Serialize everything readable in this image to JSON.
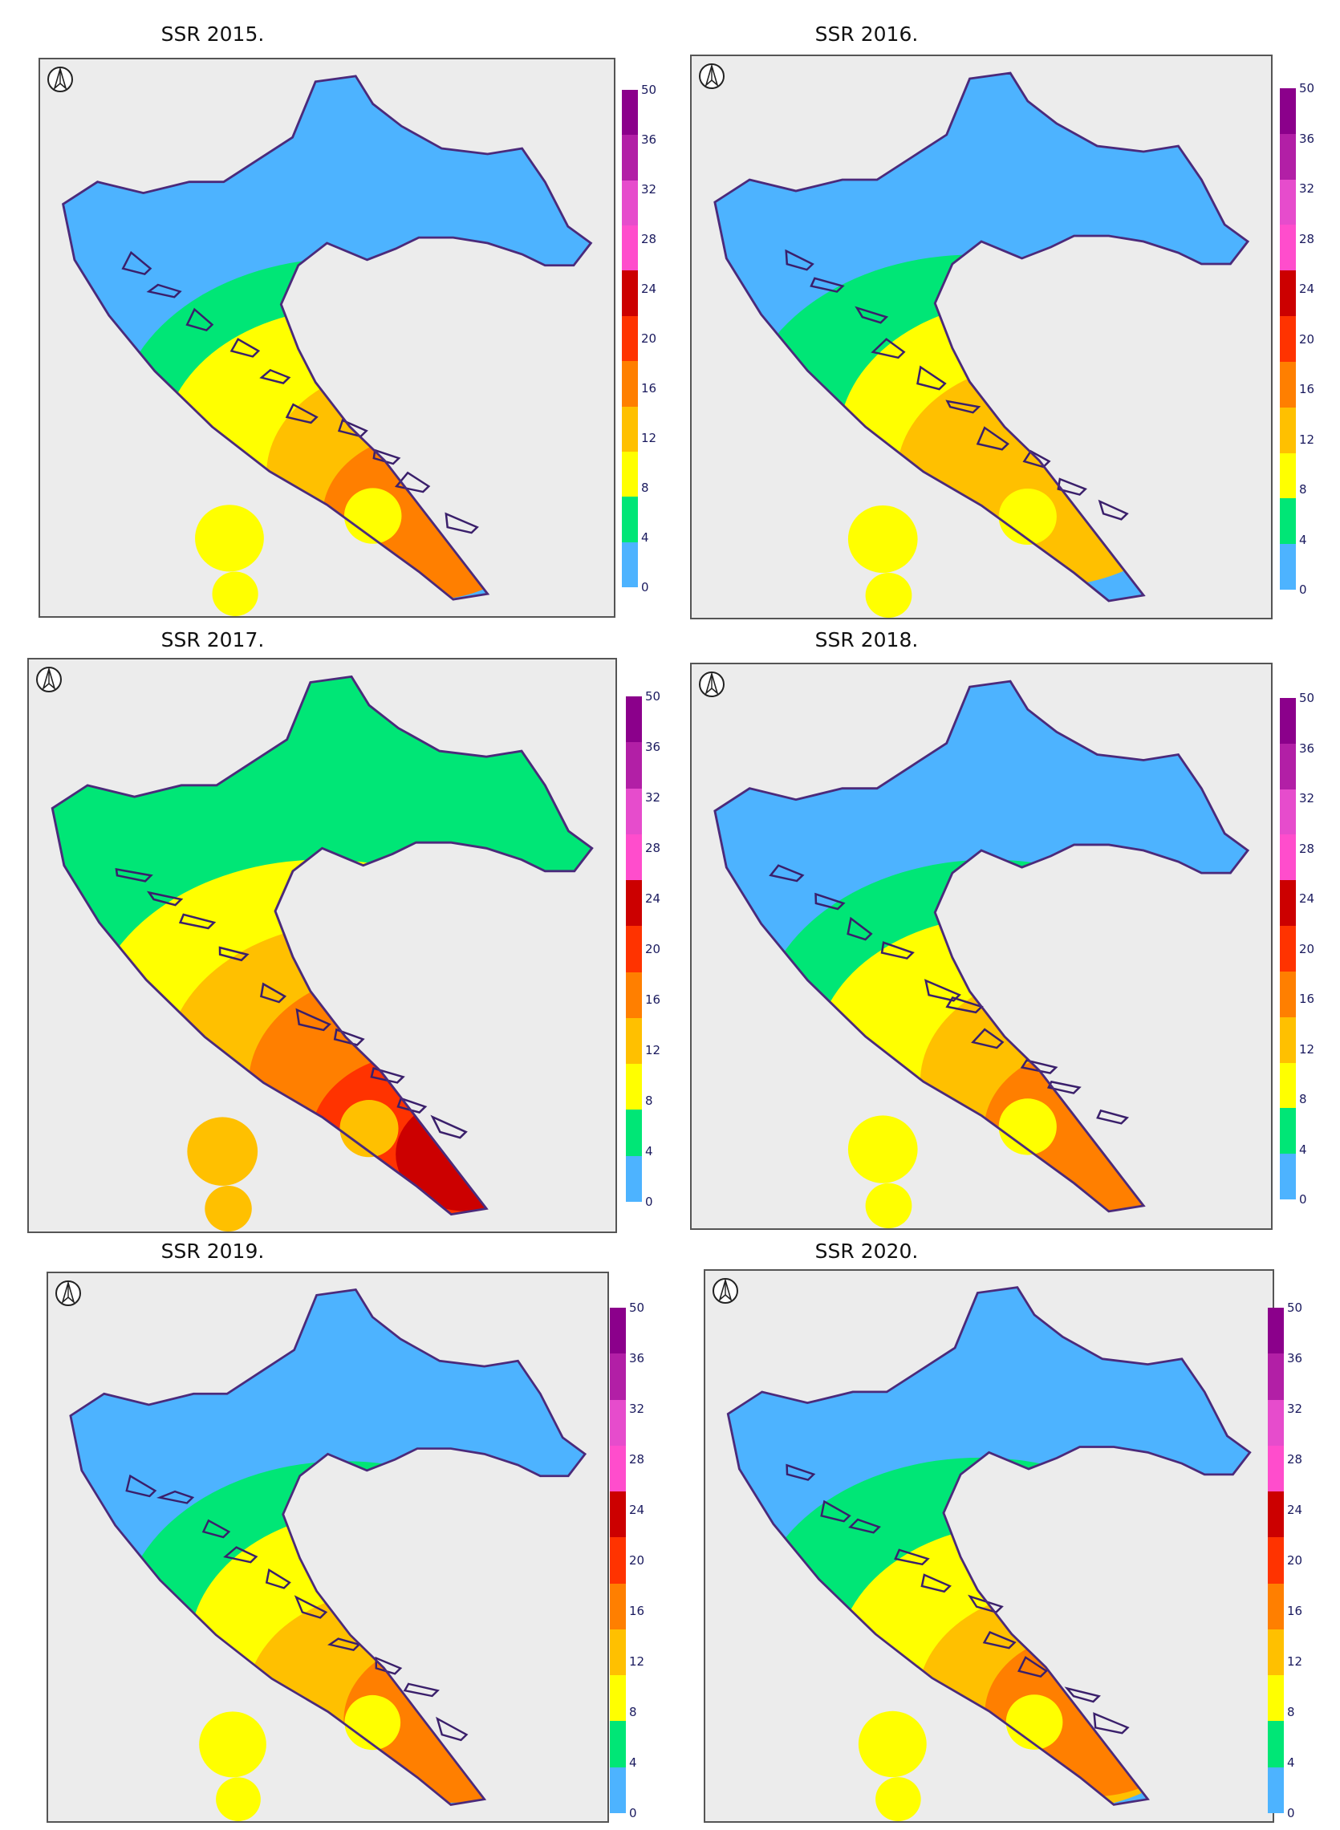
{
  "panels": [
    {
      "title": "SSR   2015.",
      "year": "2015",
      "ramp": [
        "#4db3ff",
        "#00e676",
        "#ffff00",
        "#ffc000",
        "#ff7f00"
      ]
    },
    {
      "title": "SSR   2016.",
      "year": "2016",
      "ramp": [
        "#4db3ff",
        "#00e676",
        "#ffff00",
        "#ffc000"
      ]
    },
    {
      "title": "SSR   2017.",
      "year": "2017",
      "ramp": [
        "#00e676",
        "#ffff00",
        "#ffc000",
        "#ff7f00",
        "#ff3300",
        "#cc0000"
      ]
    },
    {
      "title": "SSR   2018.",
      "year": "2018",
      "ramp": [
        "#4db3ff",
        "#00e676",
        "#ffff00",
        "#ffc000",
        "#ff7f00"
      ]
    },
    {
      "title": "SSR   2019.",
      "year": "2019",
      "ramp": [
        "#4db3ff",
        "#00e676",
        "#ffff00",
        "#ffc000",
        "#ff7f00"
      ]
    },
    {
      "title": "SSR   2020.",
      "year": "2020",
      "ramp": [
        "#4db3ff",
        "#00e676",
        "#ffff00",
        "#ffc000",
        "#ff7f00"
      ]
    }
  ],
  "colorbar": {
    "ticks": [
      "50",
      "36",
      "32",
      "28",
      "24",
      "20",
      "16",
      "12",
      "8",
      "4",
      "0"
    ],
    "colors": [
      "#8b008b",
      "#b21fa6",
      "#e64ccc",
      "#ff4dcc",
      "#cc0000",
      "#ff3300",
      "#ff7f00",
      "#ffc000",
      "#ffff00",
      "#00e676",
      "#4db3ff"
    ]
  },
  "icon": "north-arrow-icon"
}
